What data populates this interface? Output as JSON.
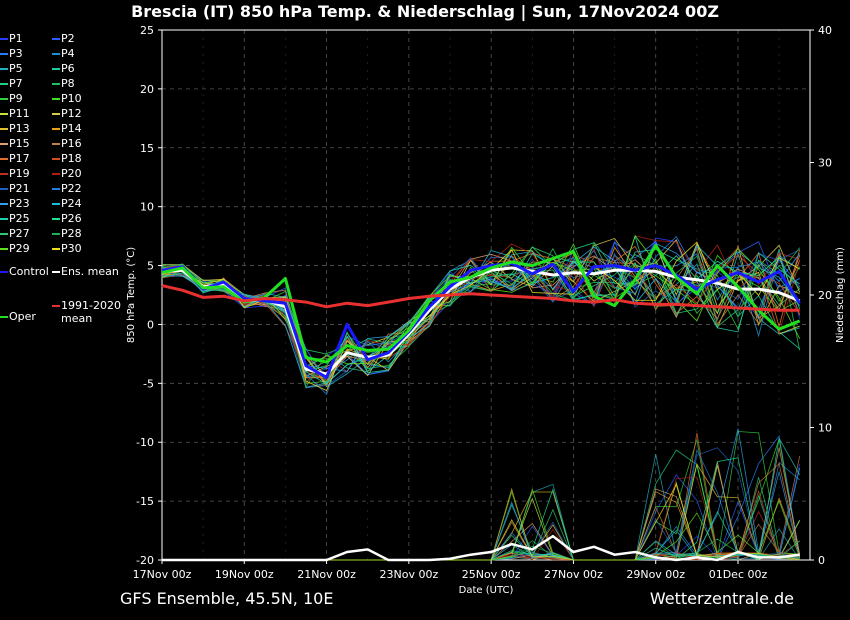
{
  "title": "Brescia  (IT)  850 hPa Temp. & Niederschlag | Sun, 17Nov2024 00Z",
  "footer": {
    "model": "GFS Ensemble, 45.5N, 10E",
    "source": "Wetterzentrale.de"
  },
  "legend": [
    {
      "label": "P1",
      "color": "#2a3cff"
    },
    {
      "label": "P2",
      "color": "#2a5cff"
    },
    {
      "label": "P3",
      "color": "#2a7cff"
    },
    {
      "label": "P4",
      "color": "#1f8fd0"
    },
    {
      "label": "P5",
      "color": "#20b0c0"
    },
    {
      "label": "P6",
      "color": "#20c8a0"
    },
    {
      "label": "P7",
      "color": "#20d080"
    },
    {
      "label": "P8",
      "color": "#20c060"
    },
    {
      "label": "P9",
      "color": "#30d040"
    },
    {
      "label": "P10",
      "color": "#40e020"
    },
    {
      "label": "P11",
      "color": "#c8e040"
    },
    {
      "label": "P12",
      "color": "#d8c850"
    },
    {
      "label": "P13",
      "color": "#e0c030"
    },
    {
      "label": "P14",
      "color": "#e8a020"
    },
    {
      "label": "P15",
      "color": "#e0a070"
    },
    {
      "label": "P16",
      "color": "#c08040"
    },
    {
      "label": "P17",
      "color": "#e07030"
    },
    {
      "label": "P18",
      "color": "#d05020"
    },
    {
      "label": "P19",
      "color": "#c03020"
    },
    {
      "label": "P20",
      "color": "#b02010"
    },
    {
      "label": "P21",
      "color": "#2060c0"
    },
    {
      "label": "P22",
      "color": "#2080e0"
    },
    {
      "label": "P23",
      "color": "#30a0f0"
    },
    {
      "label": "P24",
      "color": "#20b8d8"
    },
    {
      "label": "P25",
      "color": "#20d0b0"
    },
    {
      "label": "P26",
      "color": "#20e090"
    },
    {
      "label": "P27",
      "color": "#30c870"
    },
    {
      "label": "P28",
      "color": "#20b050"
    },
    {
      "label": "P29",
      "color": "#60e020"
    },
    {
      "label": "P30",
      "color": "#e8e020"
    },
    {
      "label": "Control",
      "color": "#1a1aff"
    },
    {
      "label": "Ens. mean",
      "color": "#ffffff"
    },
    {
      "label": "Oper",
      "color": "#20e020"
    },
    {
      "label": "1991-2020 mean",
      "color": "#e83030"
    }
  ],
  "chart_data": {
    "type": "line",
    "title": "Brescia  (IT)  850 hPa Temp. & Niederschlag | Sun, 17Nov2024 00Z",
    "xlabel": "Date (UTC)",
    "ylabel": "850 hPa Temp. (°C)",
    "y2label": "Niederschlag (mm)",
    "x_ticks": [
      "17Nov 00z",
      "19Nov 00z",
      "21Nov 00z",
      "23Nov 00z",
      "25Nov 00z",
      "27Nov 00z",
      "29Nov 00z",
      "01Dec 00z"
    ],
    "y_ticks": [
      25,
      20,
      15,
      10,
      5,
      0,
      -5,
      -10,
      -15,
      -20
    ],
    "y2_ticks": [
      40,
      30,
      20,
      10,
      0
    ],
    "ylim": [
      -20,
      25
    ],
    "y2lim": [
      0,
      40
    ],
    "x_days_range": [
      0,
      15.75
    ],
    "grid": true,
    "legend_position": "left",
    "x_days": [
      0,
      0.5,
      1,
      1.5,
      2,
      2.5,
      3,
      3.5,
      4,
      4.5,
      5,
      5.5,
      6,
      6.5,
      7,
      7.5,
      8,
      8.5,
      9,
      9.5,
      10,
      10.5,
      11,
      11.5,
      12,
      12.5,
      13,
      13.5,
      14,
      14.5,
      15,
      15.5
    ],
    "series": [
      {
        "name": "Ens. mean",
        "values": [
          4.5,
          4.6,
          3.2,
          3.4,
          2.0,
          2.1,
          1.5,
          -3.8,
          -4.2,
          -2.4,
          -2.8,
          -2.6,
          -0.8,
          1.2,
          3.0,
          4.0,
          4.6,
          4.8,
          4.5,
          4.2,
          4.4,
          4.3,
          4.6,
          4.6,
          4.5,
          4.0,
          3.8,
          3.5,
          3.0,
          3.0,
          2.7,
          2.0
        ]
      },
      {
        "name": "Control",
        "values": [
          4.6,
          4.9,
          3.0,
          3.6,
          2.2,
          2.0,
          1.8,
          -3.5,
          -4.5,
          0.0,
          -3.0,
          -2.4,
          -0.6,
          1.5,
          3.2,
          4.6,
          5.0,
          5.2,
          4.3,
          5.1,
          2.8,
          4.9,
          5.0,
          4.6,
          5.0,
          4.2,
          3.0,
          3.8,
          4.4,
          3.6,
          4.5,
          1.8
        ]
      },
      {
        "name": "Oper",
        "values": [
          4.4,
          4.8,
          3.1,
          3.2,
          1.9,
          2.3,
          3.9,
          -2.8,
          -3.2,
          -1.8,
          -2.2,
          -2.1,
          -0.5,
          2.0,
          3.6,
          4.0,
          4.8,
          5.3,
          5.0,
          5.6,
          6.2,
          2.4,
          1.6,
          3.8,
          6.7,
          4.0,
          2.6,
          5.0,
          3.2,
          1.2,
          -0.4,
          0.3
        ]
      },
      {
        "name": "1991-2020 mean",
        "values": [
          3.3,
          2.9,
          2.3,
          2.4,
          2.0,
          2.2,
          2.1,
          1.9,
          1.5,
          1.8,
          1.6,
          1.9,
          2.2,
          2.4,
          2.5,
          2.6,
          2.5,
          2.4,
          2.3,
          2.2,
          2.0,
          1.9,
          2.1,
          1.8,
          1.7,
          1.7,
          1.6,
          1.5,
          1.4,
          1.3,
          1.2,
          1.2
        ]
      }
    ],
    "precip_mean": {
      "name": "Ens. mean",
      "values": [
        0,
        0,
        0,
        0,
        0,
        0,
        0,
        0,
        0,
        0.6,
        0.8,
        0,
        0,
        0,
        0.1,
        0.4,
        0.6,
        1.2,
        0.8,
        1.8,
        0.6,
        1.0,
        0.4,
        0.6,
        0.2,
        0,
        0.2,
        0,
        0.6,
        0.2,
        0.2,
        0.4
      ]
    }
  }
}
